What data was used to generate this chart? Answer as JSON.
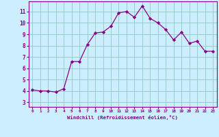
{
  "x": [
    0,
    1,
    2,
    3,
    4,
    5,
    6,
    7,
    8,
    9,
    10,
    11,
    12,
    13,
    14,
    15,
    16,
    17,
    18,
    19,
    20,
    21,
    22,
    23
  ],
  "y": [
    4.1,
    4.0,
    4.0,
    3.9,
    4.2,
    6.6,
    6.6,
    8.1,
    9.1,
    9.2,
    9.7,
    10.9,
    11.0,
    10.5,
    11.5,
    10.4,
    10.0,
    9.4,
    8.5,
    9.2,
    8.2,
    8.4,
    7.5,
    7.5
  ],
  "line_color": "#880088",
  "marker": "D",
  "marker_size": 2.2,
  "bg_color": "#cceeff",
  "grid_color": "#99cccc",
  "xlabel": "Windchill (Refroidissement éolien,°C)",
  "xlabel_color": "#880088",
  "ylabel_ticks": [
    3,
    4,
    5,
    6,
    7,
    8,
    9,
    10,
    11
  ],
  "xtick_labels": [
    "0",
    "1",
    "2",
    "3",
    "4",
    "5",
    "6",
    "7",
    "8",
    "9",
    "10",
    "11",
    "12",
    "13",
    "14",
    "15",
    "16",
    "17",
    "18",
    "19",
    "20",
    "21",
    "22",
    "23"
  ],
  "xlim": [
    -0.5,
    23.5
  ],
  "ylim": [
    2.6,
    11.9
  ],
  "tick_color": "#880088",
  "spine_color": "#880088"
}
